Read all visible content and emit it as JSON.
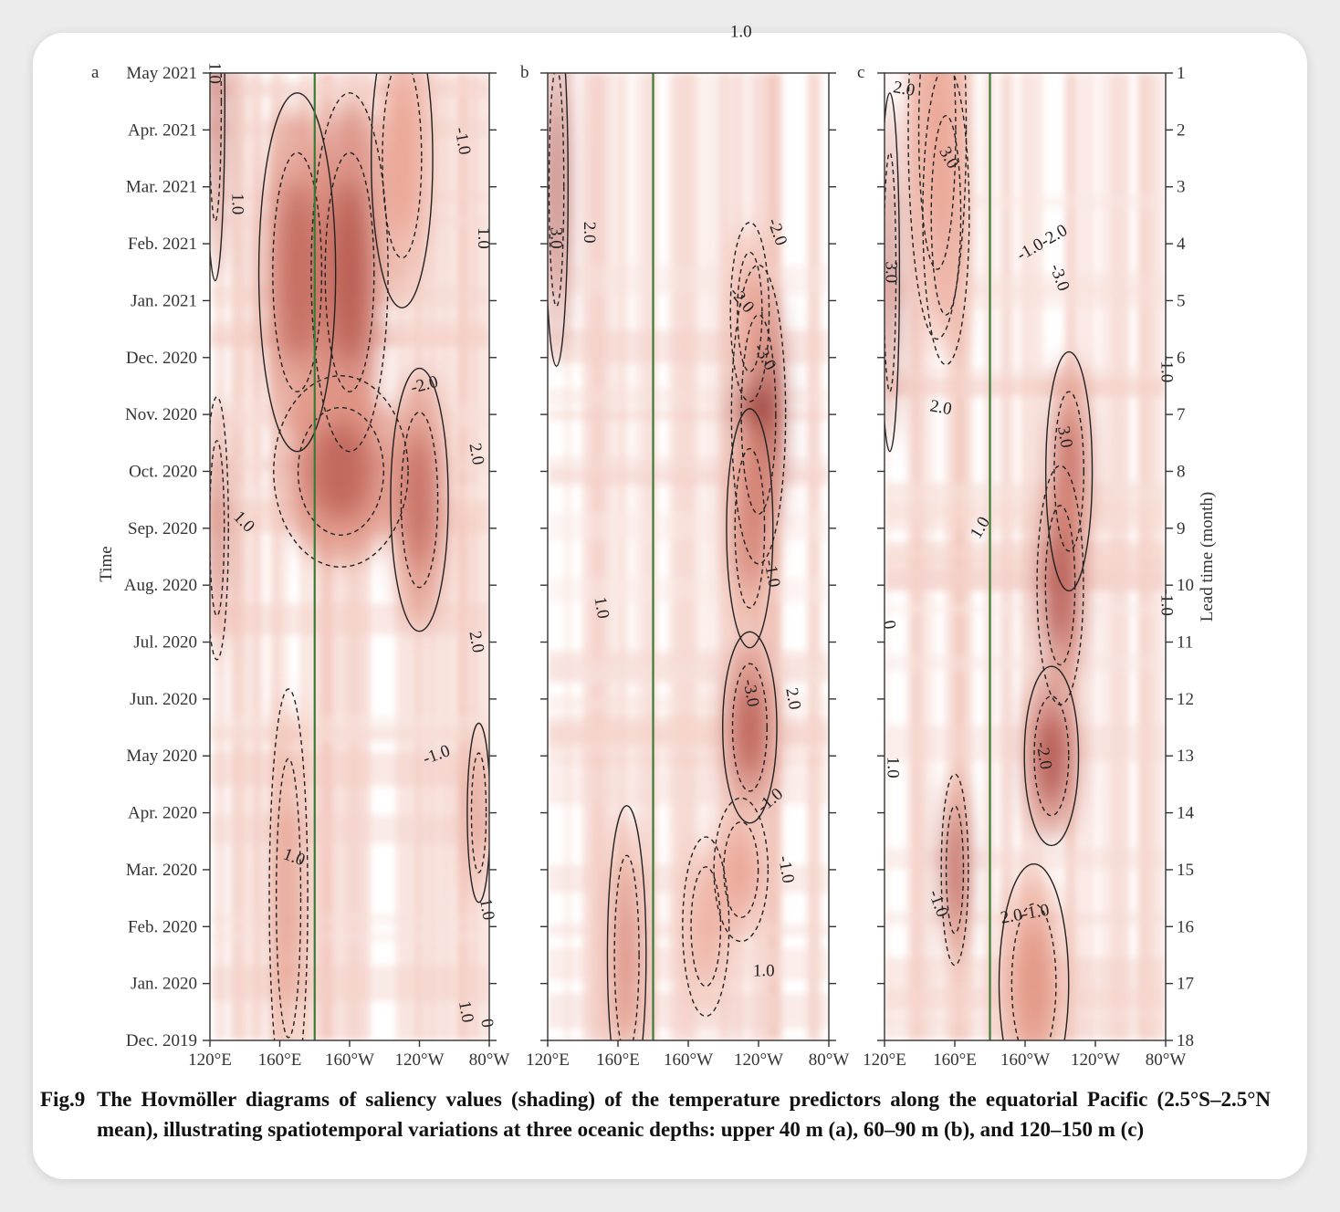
{
  "chart_data": {
    "type": "heatmap",
    "shading": "saliency values",
    "colors": {
      "low": "#ffffff",
      "mid": "#e9a08e",
      "high": "#8b1a1a",
      "contour": "#222222",
      "dateline": "#3a7a35"
    },
    "panels": [
      {
        "panel_label": "a",
        "depth": "upper 40 m",
        "contour_labels": [
          {
            "text": "1.0",
            "lon": 122,
            "t": 17.0,
            "rot": 90
          },
          {
            "text": "1.0",
            "lon": 135,
            "t": 14.7,
            "rot": 90
          },
          {
            "text": "1.0",
            "lon": 139,
            "t": 9.1,
            "rot": 45
          },
          {
            "text": "1.0",
            "lon": 168,
            "t": 3.2,
            "rot": 20
          },
          {
            "text": "-1.0",
            "lon": -96,
            "t": 15.8,
            "rot": 80
          },
          {
            "text": "1.0",
            "lon": -84,
            "t": 14.1,
            "rot": 90
          },
          {
            "text": "-2.0",
            "lon": -117,
            "t": 11.5,
            "rot": -15
          },
          {
            "text": "2.0",
            "lon": -88,
            "t": 10.3,
            "rot": 80
          },
          {
            "text": "2.0",
            "lon": -88,
            "t": 7.0,
            "rot": 80
          },
          {
            "text": "-1.0",
            "lon": -110,
            "t": 5.0,
            "rot": -20
          },
          {
            "text": "1.0",
            "lon": -82,
            "t": 2.3,
            "rot": 80
          },
          {
            "text": "1.0",
            "lon": -94,
            "t": 0.5,
            "rot": 80
          },
          {
            "text": "0",
            "lon": -82,
            "t": 0.3,
            "rot": 80
          }
        ],
        "hotspots": [
          {
            "lon": 123,
            "t": 16.5,
            "w": 5,
            "h": 3.0,
            "v": 0.85
          },
          {
            "lon": 124,
            "t": 9.0,
            "w": 6,
            "h": 2.2,
            "v": 0.75
          },
          {
            "lon": 170,
            "t": 13.5,
            "w": 20,
            "h": 3.0,
            "v": 0.75
          },
          {
            "lon": -160,
            "t": 13.5,
            "w": 20,
            "h": 3.0,
            "v": 0.8
          },
          {
            "lon": -130,
            "t": 15.5,
            "w": 16,
            "h": 2.5,
            "v": 0.55
          },
          {
            "lon": -165,
            "t": 10.0,
            "w": 35,
            "h": 1.6,
            "v": 0.75
          },
          {
            "lon": -120,
            "t": 9.5,
            "w": 15,
            "h": 2.2,
            "v": 0.75
          },
          {
            "lon": 165,
            "t": 2.5,
            "w": 10,
            "h": 3.5,
            "v": 0.6
          },
          {
            "lon": -86,
            "t": 4.0,
            "w": 6,
            "h": 1.5,
            "v": 0.65
          }
        ]
      },
      {
        "panel_label": "b",
        "depth": "60–90 m",
        "contour_labels": [
          {
            "text": "1.0",
            "lon": -130,
            "t": 17.7,
            "rot": 0
          },
          {
            "text": "2.0",
            "lon": 143,
            "t": 14.2,
            "rot": 90
          },
          {
            "text": "3.0",
            "lon": 124,
            "t": 14.1,
            "rot": 90
          },
          {
            "text": "-2.0",
            "lon": -110,
            "t": 14.2,
            "rot": 70
          },
          {
            "text": "-2.0",
            "lon": -130,
            "t": 13.0,
            "rot": 50
          },
          {
            "text": "-3.0",
            "lon": -117,
            "t": 12.0,
            "rot": 60
          },
          {
            "text": "1.0",
            "lon": 150,
            "t": 7.6,
            "rot": 80
          },
          {
            "text": "-1.0",
            "lon": -113,
            "t": 8.2,
            "rot": 80
          },
          {
            "text": "-3.0",
            "lon": -125,
            "t": 6.1,
            "rot": 80
          },
          {
            "text": "2.0",
            "lon": -101,
            "t": 6.0,
            "rot": 80
          },
          {
            "text": "-1.0",
            "lon": -113,
            "t": 4.2,
            "rot": -40
          },
          {
            "text": "-1.0",
            "lon": -105,
            "t": 3.0,
            "rot": 80
          },
          {
            "text": "1.0",
            "lon": -117,
            "t": 1.2,
            "rot": 0
          }
        ],
        "hotspots": [
          {
            "lon": 125,
            "t": 15.0,
            "w": 6,
            "h": 3.0,
            "v": 0.9
          },
          {
            "lon": -120,
            "t": 11.0,
            "w": 14,
            "h": 2.5,
            "v": 1.0
          },
          {
            "lon": -125,
            "t": 9.0,
            "w": 12,
            "h": 2.0,
            "v": 0.7
          },
          {
            "lon": -125,
            "t": 12.8,
            "w": 10,
            "h": 1.5,
            "v": 0.55
          },
          {
            "lon": -125,
            "t": 5.5,
            "w": 14,
            "h": 1.6,
            "v": 0.8
          },
          {
            "lon": -130,
            "t": 3.0,
            "w": 14,
            "h": 1.2,
            "v": 0.55
          },
          {
            "lon": 165,
            "t": 1.5,
            "w": 10,
            "h": 2.5,
            "v": 0.65
          },
          {
            "lon": -150,
            "t": 2.0,
            "w": 12,
            "h": 1.5,
            "v": 0.5
          }
        ]
      },
      {
        "panel_label": "c",
        "depth": "120–150 m",
        "contour_labels": [
          {
            "text": "2.0",
            "lon": 131,
            "t": 16.7,
            "rot": 10
          },
          {
            "text": "3.0",
            "lon": 156,
            "t": 15.5,
            "rot": 60
          },
          {
            "text": "-1.0-2.0",
            "lon": -150,
            "t": 14.0,
            "rot": -30
          },
          {
            "text": "-3.0",
            "lon": -141,
            "t": 13.4,
            "rot": 70
          },
          {
            "text": "3.0",
            "lon": 123,
            "t": 13.5,
            "rot": 90
          },
          {
            "text": "2.0",
            "lon": 152,
            "t": 11.1,
            "rot": 10
          },
          {
            "text": "-1.0",
            "lon": -80,
            "t": 11.8,
            "rot": 90
          },
          {
            "text": "3.0",
            "lon": -138,
            "t": 10.6,
            "rot": 80
          },
          {
            "text": "1.0",
            "lon": 175,
            "t": 9.0,
            "rot": -60
          },
          {
            "text": "-1.0",
            "lon": -80,
            "t": 7.7,
            "rot": 90
          },
          {
            "text": "-2.0",
            "lon": -150,
            "t": 5.0,
            "rot": 80
          },
          {
            "text": "1.0",
            "lon": 124,
            "t": 4.8,
            "rot": 90
          },
          {
            "text": "-1.0",
            "lon": 150,
            "t": 2.4,
            "rot": 70
          },
          {
            "text": "2.0-1.0",
            "lon": -160,
            "t": 2.2,
            "rot": -10
          },
          {
            "text": "0",
            "lon": 122,
            "t": 7.3,
            "rot": 80
          }
        ],
        "hotspots": [
          {
            "lon": 123,
            "t": 13.5,
            "w": 5,
            "h": 3.0,
            "v": 0.85
          },
          {
            "lon": 155,
            "t": 14.5,
            "w": 12,
            "h": 2.5,
            "v": 0.6
          },
          {
            "lon": -135,
            "t": 10.0,
            "w": 12,
            "h": 2.0,
            "v": 0.75
          },
          {
            "lon": -140,
            "t": 8.0,
            "w": 12,
            "h": 2.0,
            "v": 0.85
          },
          {
            "lon": -145,
            "t": 5.0,
            "w": 14,
            "h": 1.5,
            "v": 0.85
          },
          {
            "lon": 160,
            "t": 3.0,
            "w": 7,
            "h": 1.6,
            "v": 0.85
          },
          {
            "lon": -155,
            "t": 1.0,
            "w": 18,
            "h": 2.0,
            "v": 0.6
          },
          {
            "lon": 150,
            "t": 16.0,
            "w": 15,
            "h": 3.5,
            "v": 0.55
          }
        ]
      }
    ],
    "x_ticks": [
      "120°E",
      "160°E",
      "160°W",
      "120°W",
      "80°W"
    ],
    "x_tick_lons": [
      120,
      160,
      -160,
      -120,
      -80
    ],
    "x_range": [
      120,
      -80
    ],
    "y_left_ticks": [
      "May 2021",
      "Apr. 2021",
      "Mar. 2021",
      "Feb. 2021",
      "Jan. 2021",
      "Dec. 2020",
      "Nov. 2020",
      "Oct. 2020",
      "Sep. 2020",
      "Aug. 2020",
      "Jul. 2020",
      "Jun. 2020",
      "May 2020",
      "Apr. 2020",
      "Mar. 2020",
      "Feb. 2020",
      "Jan. 2020",
      "Dec. 2019"
    ],
    "y_right_ticks": [
      "1",
      "2",
      "3",
      "4",
      "5",
      "6",
      "7",
      "8",
      "9",
      "10",
      "11",
      "12",
      "13",
      "14",
      "15",
      "16",
      "17",
      "18"
    ],
    "ylabel_left": "Time",
    "ylabel_right": "Lead time (month)",
    "dateline_lon": 180
  },
  "caption": {
    "label": "Fig.9",
    "text": "The Hovmöller diagrams of saliency values (shading) of the temperature predictors along the equatorial Pacific (2.5°S–2.5°N mean), illustrating spatiotemporal variations at three oceanic depths: upper 40 m (a), 60–90 m (b), and 120–150 m (c)"
  }
}
